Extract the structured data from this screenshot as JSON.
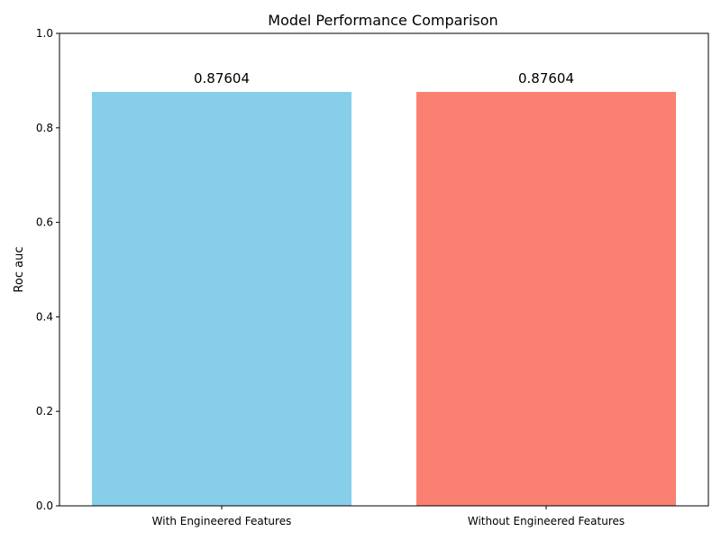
{
  "chart_data": {
    "type": "bar",
    "title": "Model Performance Comparison",
    "xlabel": "",
    "ylabel": "Roc auc",
    "categories": [
      "With Engineered Features",
      "Without Engineered Features"
    ],
    "values": [
      0.87604,
      0.87604
    ],
    "value_labels": [
      "0.87604",
      "0.87604"
    ],
    "colors": [
      "#87ceeb",
      "#fa8072"
    ],
    "ylim": [
      0,
      1
    ],
    "yticks": [
      0.0,
      0.2,
      0.4,
      0.6,
      0.8,
      1.0
    ],
    "ytick_labels": [
      "0.0",
      "0.2",
      "0.4",
      "0.6",
      "0.8",
      "1.0"
    ],
    "grid": false,
    "legend": false
  }
}
